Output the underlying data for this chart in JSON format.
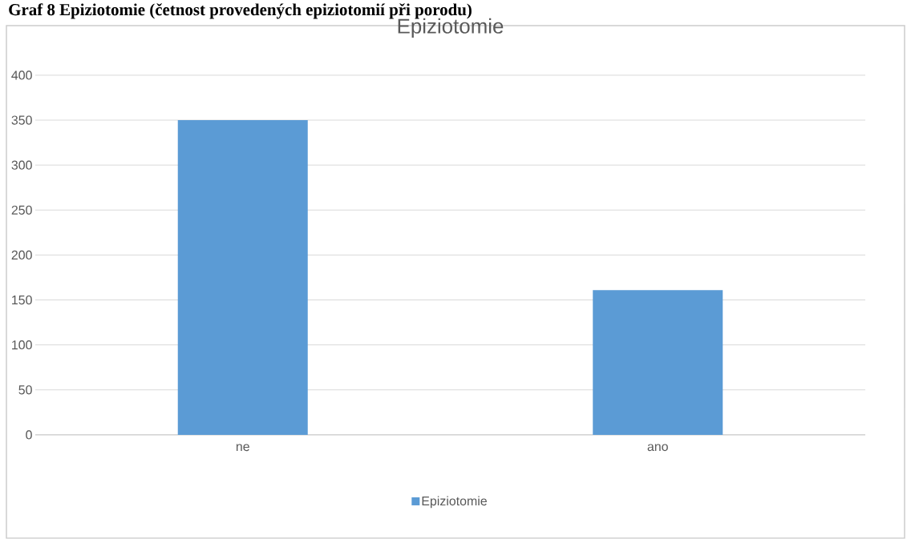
{
  "chart_data": {
    "type": "bar",
    "title": "Epiziotomie",
    "annotations": [
      "Graf 8 Epiziotomie (četnost provedených epiziotomií při porodu)"
    ],
    "categories": [
      "ne",
      "ano"
    ],
    "series": [
      {
        "name": "Epiziotomie",
        "color": "#5b9bd5",
        "values": [
          350,
          161
        ]
      }
    ],
    "ylim": [
      0,
      400
    ],
    "yticks": [
      0,
      50,
      100,
      150,
      200,
      250,
      300,
      350,
      400
    ],
    "grid": "y",
    "legend": "bottom"
  }
}
